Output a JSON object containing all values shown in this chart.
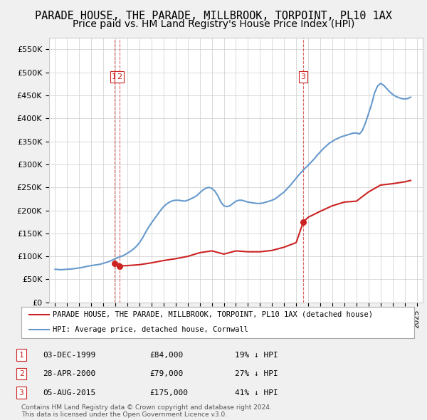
{
  "title": "PARADE HOUSE, THE PARADE, MILLBROOK, TORPOINT, PL10 1AX",
  "subtitle": "Price paid vs. HM Land Registry's House Price Index (HPI)",
  "title_fontsize": 11,
  "subtitle_fontsize": 10,
  "background_color": "#f0f0f0",
  "plot_bg_color": "#ffffff",
  "ylim": [
    0,
    575000
  ],
  "yticks": [
    0,
    50000,
    100000,
    150000,
    200000,
    250000,
    300000,
    350000,
    400000,
    450000,
    500000,
    550000
  ],
  "ytick_labels": [
    "£0",
    "£50K",
    "£100K",
    "£150K",
    "£200K",
    "£250K",
    "£300K",
    "£350K",
    "£400K",
    "£450K",
    "£500K",
    "£550K"
  ],
  "xlim_start": 1994.5,
  "xlim_end": 2025.5,
  "hpi_color": "#6699cc",
  "sale_color": "#cc2222",
  "grid_color": "#cccccc",
  "legend_entries": [
    "PARADE HOUSE, THE PARADE, MILLBROOK, TORPOINT, PL10 1AX (detached house)",
    "HPI: Average price, detached house, Cornwall"
  ],
  "transactions": [
    {
      "num": 1,
      "date": "03-DEC-1999",
      "price": 84000,
      "pct": "19% ↓ HPI",
      "year": 1999.92
    },
    {
      "num": 2,
      "date": "28-APR-2000",
      "price": 79000,
      "pct": "27% ↓ HPI",
      "year": 2000.32
    },
    {
      "num": 3,
      "date": "05-AUG-2015",
      "price": 175000,
      "pct": "41% ↓ HPI",
      "year": 2015.59
    }
  ],
  "footer_line1": "Contains HM Land Registry data © Crown copyright and database right 2024.",
  "footer_line2": "This data is licensed under the Open Government Licence v3.0.",
  "hpi_data": {
    "years": [
      1995.0,
      1995.25,
      1995.5,
      1995.75,
      1996.0,
      1996.25,
      1996.5,
      1996.75,
      1997.0,
      1997.25,
      1997.5,
      1997.75,
      1998.0,
      1998.25,
      1998.5,
      1998.75,
      1999.0,
      1999.25,
      1999.5,
      1999.75,
      2000.0,
      2000.25,
      2000.5,
      2000.75,
      2001.0,
      2001.25,
      2001.5,
      2001.75,
      2002.0,
      2002.25,
      2002.5,
      2002.75,
      2003.0,
      2003.25,
      2003.5,
      2003.75,
      2004.0,
      2004.25,
      2004.5,
      2004.75,
      2005.0,
      2005.25,
      2005.5,
      2005.75,
      2006.0,
      2006.25,
      2006.5,
      2006.75,
      2007.0,
      2007.25,
      2007.5,
      2007.75,
      2008.0,
      2008.25,
      2008.5,
      2008.75,
      2009.0,
      2009.25,
      2009.5,
      2009.75,
      2010.0,
      2010.25,
      2010.5,
      2010.75,
      2011.0,
      2011.25,
      2011.5,
      2011.75,
      2012.0,
      2012.25,
      2012.5,
      2012.75,
      2013.0,
      2013.25,
      2013.5,
      2013.75,
      2014.0,
      2014.25,
      2014.5,
      2014.75,
      2015.0,
      2015.25,
      2015.5,
      2015.75,
      2016.0,
      2016.25,
      2016.5,
      2016.75,
      2017.0,
      2017.25,
      2017.5,
      2017.75,
      2018.0,
      2018.25,
      2018.5,
      2018.75,
      2019.0,
      2019.25,
      2019.5,
      2019.75,
      2020.0,
      2020.25,
      2020.5,
      2020.75,
      2021.0,
      2021.25,
      2021.5,
      2021.75,
      2022.0,
      2022.25,
      2022.5,
      2022.75,
      2023.0,
      2023.25,
      2023.5,
      2023.75,
      2024.0,
      2024.25,
      2024.5
    ],
    "values": [
      72000,
      71500,
      71000,
      71500,
      72000,
      72500,
      73000,
      74000,
      75000,
      76000,
      77500,
      79000,
      80000,
      81000,
      82000,
      83000,
      85000,
      87000,
      89000,
      92000,
      95000,
      98000,
      100000,
      103000,
      107000,
      111000,
      116000,
      122000,
      130000,
      140000,
      152000,
      163000,
      173000,
      182000,
      191000,
      200000,
      208000,
      214000,
      218000,
      221000,
      222000,
      222000,
      221000,
      220000,
      222000,
      225000,
      228000,
      232000,
      238000,
      244000,
      248000,
      250000,
      248000,
      242000,
      232000,
      218000,
      210000,
      208000,
      210000,
      215000,
      220000,
      222000,
      222000,
      220000,
      218000,
      217000,
      216000,
      215000,
      215000,
      216000,
      218000,
      220000,
      222000,
      225000,
      230000,
      235000,
      240000,
      247000,
      254000,
      262000,
      270000,
      278000,
      285000,
      292000,
      298000,
      305000,
      312000,
      320000,
      327000,
      334000,
      340000,
      346000,
      350000,
      354000,
      357000,
      360000,
      362000,
      364000,
      366000,
      368000,
      368000,
      366000,
      374000,
      390000,
      410000,
      430000,
      455000,
      470000,
      476000,
      472000,
      465000,
      458000,
      452000,
      448000,
      445000,
      443000,
      442000,
      443000,
      446000
    ]
  },
  "sale_data": {
    "years": [
      1999.92,
      2000.32,
      2015.59
    ],
    "values": [
      84000,
      79000,
      175000
    ]
  },
  "sale_line_data": {
    "years": [
      1999.92,
      2000.32,
      2000.32,
      2001.0,
      2002.0,
      2003.0,
      2004.0,
      2005.0,
      2006.0,
      2007.0,
      2008.0,
      2009.0,
      2010.0,
      2011.0,
      2012.0,
      2013.0,
      2014.0,
      2015.0,
      2015.59,
      2016.0,
      2017.0,
      2018.0,
      2019.0,
      2020.0,
      2021.0,
      2022.0,
      2023.0,
      2024.0,
      2024.5
    ],
    "values": [
      84000,
      84000,
      79000,
      80000,
      82000,
      86000,
      91000,
      95000,
      100000,
      108000,
      112000,
      105000,
      112000,
      110000,
      110000,
      113000,
      120000,
      130000,
      175000,
      185000,
      198000,
      210000,
      218000,
      220000,
      240000,
      255000,
      258000,
      262000,
      265000
    ]
  }
}
